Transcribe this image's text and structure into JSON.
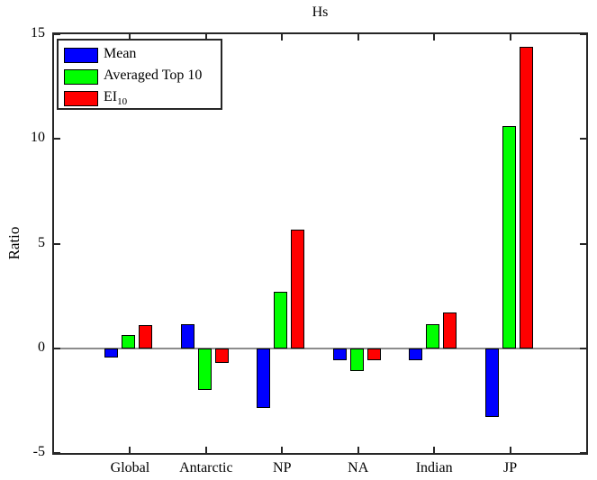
{
  "chart_data": {
    "type": "bar",
    "title": "Hs",
    "xlabel": "",
    "ylabel": "Ratio",
    "categories": [
      "Global",
      "Antarctic",
      "NP",
      "NA",
      "Indian",
      "JP"
    ],
    "series": [
      {
        "name": "Mean",
        "color": "#0000ff",
        "values": [
          -0.45,
          1.15,
          -2.85,
          -0.55,
          -0.55,
          -3.3
        ]
      },
      {
        "name": "Averaged Top 10",
        "color": "#00ff00",
        "values": [
          0.65,
          -2.0,
          2.7,
          -1.1,
          1.15,
          10.6
        ]
      },
      {
        "name": "EI_10",
        "color": "#ff0000",
        "values": [
          1.1,
          -0.7,
          5.65,
          -0.55,
          1.7,
          14.4
        ]
      }
    ],
    "ylim": [
      -5,
      15
    ],
    "yticks": [
      -5,
      0,
      5,
      10,
      15
    ],
    "grid": false,
    "legend_position": "top-left",
    "legend": [
      {
        "label": "Mean"
      },
      {
        "label": "Averaged Top 10"
      },
      {
        "label": "EI",
        "sub": "10"
      }
    ],
    "axis_color": "#262626",
    "zero_line_color": "#8c8c8c",
    "background_color": "#ffffff"
  }
}
